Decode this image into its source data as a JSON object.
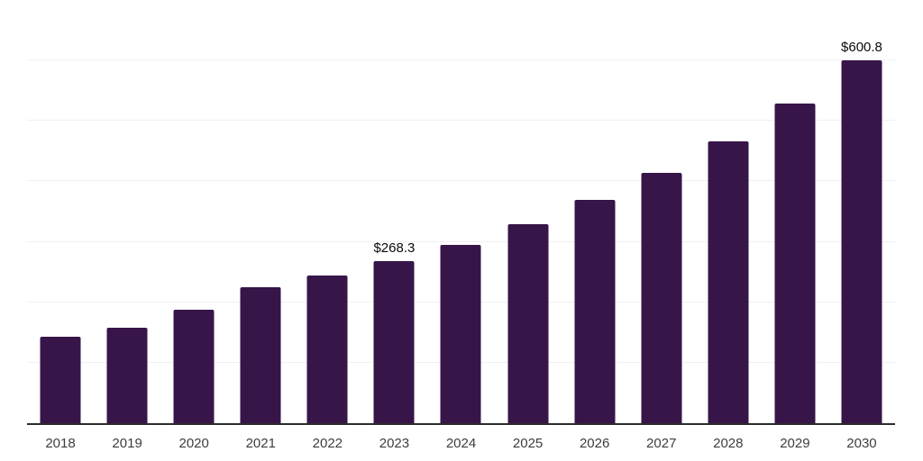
{
  "chart_data": {
    "type": "bar",
    "title": "",
    "xlabel": "",
    "ylabel": "",
    "categories": [
      "2018",
      "2019",
      "2020",
      "2021",
      "2022",
      "2023",
      "2024",
      "2025",
      "2026",
      "2027",
      "2028",
      "2029",
      "2030"
    ],
    "values": [
      142.6,
      158.6,
      187.7,
      225.5,
      244.2,
      268.3,
      295.3,
      329.5,
      369.1,
      414.2,
      465.7,
      528.1,
      600.8
    ],
    "data_labels": [
      "",
      "",
      "",
      "",
      "",
      "$268.3",
      "",
      "",
      "",
      "",
      "",
      "",
      "$600.8"
    ],
    "ylim": [
      0,
      700
    ],
    "gridline_interval": 100,
    "grid": "horizontal-only",
    "legend": "none",
    "y_axis_tick_labels": "none",
    "colors": {
      "bar": "#371548",
      "axis_line": "#2b2b2b",
      "gridline": "#f0f0f0",
      "tick_label": "#3d3d3d",
      "data_label": "#0a0a0a",
      "background": "#ffffff"
    }
  }
}
